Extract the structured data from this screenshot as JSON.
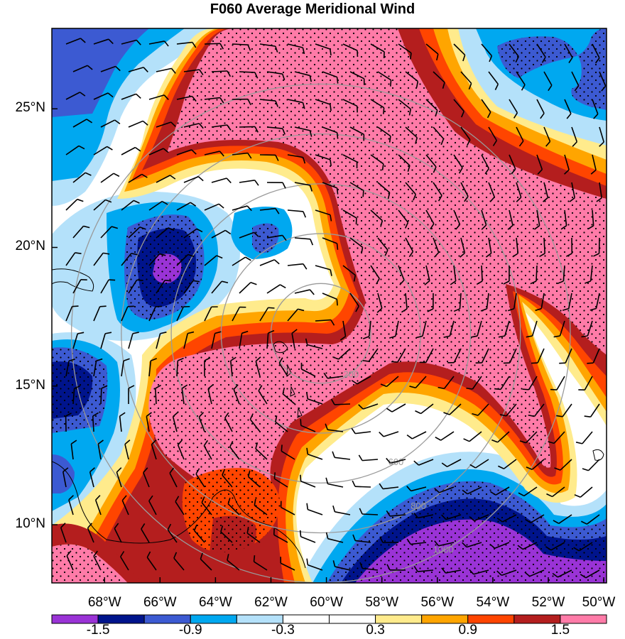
{
  "title": "F060 Average Meridional Wind",
  "map": {
    "lat_labels": [
      {
        "lat": 25,
        "label": "25°N"
      },
      {
        "lat": 20,
        "label": "20°N"
      },
      {
        "lat": 15,
        "label": "15°N"
      },
      {
        "lat": 10,
        "label": "10°N"
      }
    ],
    "lon_labels": [
      {
        "lon": -68,
        "label": "68°W"
      },
      {
        "lon": -66,
        "label": "66°W"
      },
      {
        "lon": -64,
        "label": "64°W"
      },
      {
        "lon": -62,
        "label": "62°W"
      },
      {
        "lon": -60,
        "label": "60°W"
      },
      {
        "lon": -58,
        "label": "58°W"
      },
      {
        "lon": -56,
        "label": "56°W"
      },
      {
        "lon": -54,
        "label": "54°W"
      },
      {
        "lon": -52,
        "label": "52°W"
      },
      {
        "lon": -50,
        "label": "50°W"
      }
    ],
    "extent": {
      "lon_min": -69.9,
      "lon_max": -49.9,
      "lat_min": 7.9,
      "lat_max": 27.9
    },
    "range_ring_center": {
      "lon": -60.2,
      "lat": 16.9
    },
    "range_rings": [
      {
        "km": 200,
        "label": "200"
      },
      {
        "km": 400,
        "label": ""
      },
      {
        "km": 600,
        "label": "600"
      },
      {
        "km": 800,
        "label": "800"
      },
      {
        "km": 1000,
        "label": "1000"
      }
    ]
  },
  "colorbar": {
    "colors": [
      "#9a33d6",
      "#00148c",
      "#3c5ad2",
      "#00a8f0",
      "#b4e1fa",
      "#ffffff",
      "#ffffff",
      "#ffeb8c",
      "#ffa500",
      "#ff4500",
      "#b41e1e",
      "#ff7ba8"
    ],
    "labels": [
      "-1.5",
      "-0.9",
      "-0.3",
      "0.3",
      "0.9",
      "1.5"
    ]
  },
  "palette": {
    "strong_neg": "#9a33d6",
    "neg5": "#00148c",
    "neg4": "#3c5ad2",
    "neg3": "#00a8f0",
    "neg2": "#b4e1fa",
    "zero": "#ffffff",
    "pos2": "#ffeb8c",
    "pos3": "#ffa500",
    "pos4": "#ff4500",
    "pos5": "#b41e1e",
    "strong_pos": "#ff7ba8",
    "ring": "#9a9a9a",
    "coast": "#000000"
  }
}
